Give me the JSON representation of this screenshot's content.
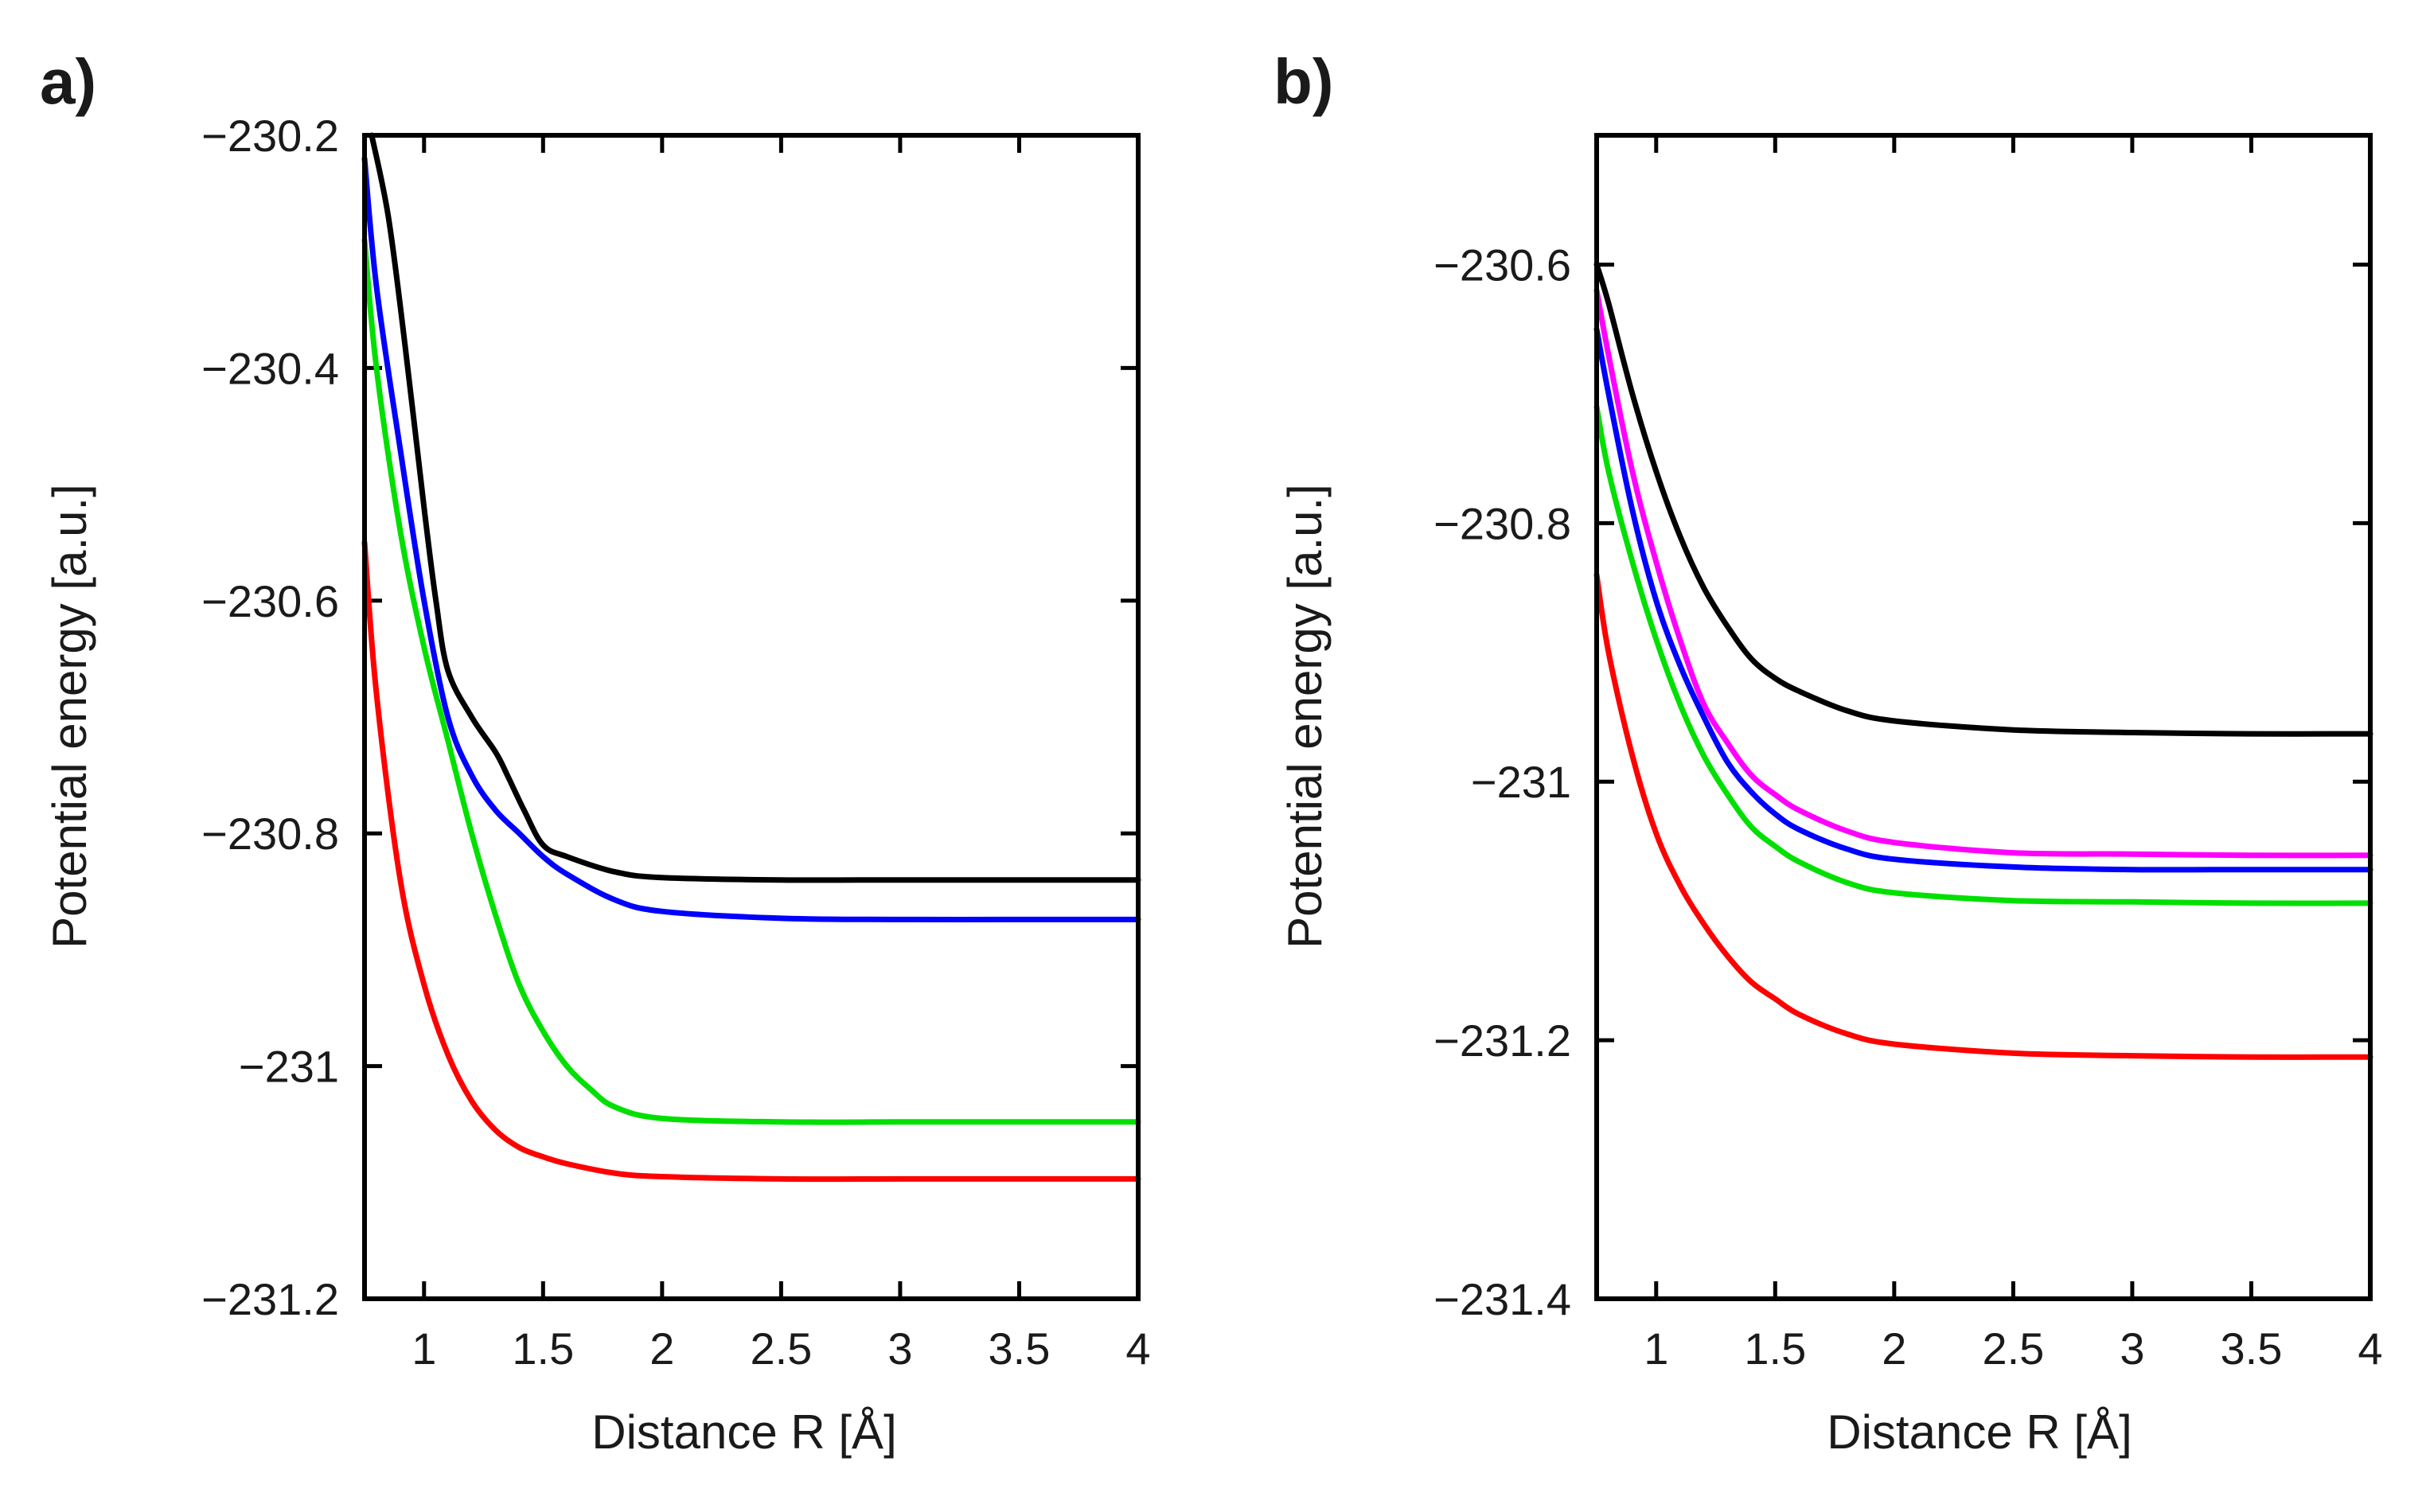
{
  "chart_data": [
    {
      "type": "line",
      "panel_label": "a)",
      "xlabel": "Distance R [Å]",
      "ylabel": "Potential energy [a.u.]",
      "xlim": [
        0.75,
        4
      ],
      "ylim": [
        -231.2,
        -230.2
      ],
      "xticks": [
        1,
        1.5,
        2,
        2.5,
        3,
        3.5,
        4
      ],
      "xtick_labels": [
        "1",
        "1.5",
        "2",
        "2.5",
        "3",
        "3.5",
        "4"
      ],
      "yticks": [
        -230.2,
        -230.4,
        -230.6,
        -230.8,
        -231,
        -231.2
      ],
      "ytick_labels": [
        "−230.2",
        "−230.4",
        "−230.6",
        "−230.8",
        "−231",
        "−231.2"
      ],
      "series": [
        {
          "name": "black",
          "color": "#000000",
          "x": [
            0.78,
            0.85,
            0.92,
            1.0,
            1.05,
            1.1,
            1.2,
            1.3,
            1.35,
            1.42,
            1.5,
            1.6,
            1.8,
            2.0,
            2.5,
            3.0,
            3.5,
            4.0
          ],
          "y": [
            -230.2,
            -230.27,
            -230.38,
            -230.52,
            -230.6,
            -230.66,
            -230.7,
            -230.73,
            -230.75,
            -230.78,
            -230.81,
            -230.82,
            -230.833,
            -230.838,
            -230.84,
            -230.84,
            -230.84,
            -230.84
          ]
        },
        {
          "name": "blue",
          "color": "#0000ff",
          "x": [
            0.75,
            0.8,
            0.9,
            1.0,
            1.1,
            1.2,
            1.3,
            1.4,
            1.5,
            1.6,
            1.8,
            2.0,
            2.5,
            3.0,
            3.5,
            4.0
          ],
          "y": [
            -230.22,
            -230.33,
            -230.47,
            -230.6,
            -230.7,
            -230.75,
            -230.78,
            -230.8,
            -230.82,
            -230.835,
            -230.857,
            -230.867,
            -230.873,
            -230.874,
            -230.874,
            -230.874
          ]
        },
        {
          "name": "green",
          "color": "#00e000",
          "x": [
            0.75,
            0.8,
            0.9,
            1.0,
            1.1,
            1.2,
            1.3,
            1.4,
            1.5,
            1.6,
            1.7,
            1.8,
            2.0,
            2.5,
            3.0,
            3.5,
            4.0
          ],
          "y": [
            -230.29,
            -230.4,
            -230.54,
            -230.64,
            -230.72,
            -230.8,
            -230.87,
            -230.93,
            -230.97,
            -231.0,
            -231.02,
            -231.035,
            -231.045,
            -231.048,
            -231.048,
            -231.048,
            -231.048
          ]
        },
        {
          "name": "red",
          "color": "#ff0000",
          "x": [
            0.75,
            0.8,
            0.9,
            1.0,
            1.1,
            1.2,
            1.3,
            1.4,
            1.5,
            1.6,
            1.8,
            2.0,
            2.5,
            3.0,
            3.5,
            4.0
          ],
          "y": [
            -230.55,
            -230.68,
            -230.84,
            -230.93,
            -230.99,
            -231.03,
            -231.055,
            -231.07,
            -231.078,
            -231.084,
            -231.092,
            -231.095,
            -231.097,
            -231.097,
            -231.097,
            -231.097
          ]
        }
      ]
    },
    {
      "type": "line",
      "panel_label": "b)",
      "xlabel": "Distance R [Å]",
      "ylabel": "Potential energy [a.u.]",
      "xlim": [
        0.75,
        4
      ],
      "ylim": [
        -231.4,
        -230.5
      ],
      "xticks": [
        1,
        1.5,
        2,
        2.5,
        3,
        3.5,
        4
      ],
      "xtick_labels": [
        "1",
        "1.5",
        "2",
        "2.5",
        "3",
        "3.5",
        "4"
      ],
      "yticks": [
        -230.6,
        -230.8,
        -231,
        -231.2,
        -231.4
      ],
      "ytick_labels": [
        "−230.6",
        "−230.8",
        "−231",
        "−231.2",
        "−231.4"
      ],
      "series": [
        {
          "name": "black",
          "color": "#000000",
          "x": [
            0.75,
            0.8,
            0.9,
            1.0,
            1.1,
            1.2,
            1.3,
            1.4,
            1.5,
            1.6,
            1.8,
            2.0,
            2.5,
            3.0,
            3.5,
            4.0
          ],
          "y": [
            -230.6,
            -230.63,
            -230.7,
            -230.76,
            -230.81,
            -230.85,
            -230.88,
            -230.905,
            -230.92,
            -230.93,
            -230.945,
            -230.953,
            -230.96,
            -230.962,
            -230.963,
            -230.963
          ]
        },
        {
          "name": "magenta",
          "color": "#ff00ff",
          "x": [
            0.75,
            0.8,
            0.9,
            1.0,
            1.1,
            1.2,
            1.3,
            1.4,
            1.5,
            1.6,
            1.8,
            2.0,
            2.5,
            3.0,
            3.5,
            4.0
          ],
          "y": [
            -230.62,
            -230.67,
            -230.76,
            -230.83,
            -230.89,
            -230.94,
            -230.97,
            -230.995,
            -231.01,
            -231.022,
            -231.038,
            -231.047,
            -231.055,
            -231.056,
            -231.057,
            -231.057
          ]
        },
        {
          "name": "blue",
          "color": "#0000ff",
          "x": [
            0.75,
            0.8,
            0.9,
            1.0,
            1.1,
            1.2,
            1.3,
            1.4,
            1.5,
            1.6,
            1.8,
            2.0,
            2.5,
            3.0,
            3.5,
            4.0
          ],
          "y": [
            -230.65,
            -230.7,
            -230.79,
            -230.86,
            -230.91,
            -230.95,
            -230.985,
            -231.008,
            -231.025,
            -231.037,
            -231.052,
            -231.06,
            -231.066,
            -231.068,
            -231.068,
            -231.068
          ]
        },
        {
          "name": "green",
          "color": "#00e000",
          "x": [
            0.75,
            0.8,
            0.9,
            1.0,
            1.1,
            1.2,
            1.3,
            1.4,
            1.5,
            1.6,
            1.8,
            2.0,
            2.5,
            3.0,
            3.5,
            4.0
          ],
          "y": [
            -230.71,
            -230.76,
            -230.83,
            -230.89,
            -230.94,
            -230.98,
            -231.01,
            -231.035,
            -231.05,
            -231.062,
            -231.078,
            -231.086,
            -231.092,
            -231.093,
            -231.094,
            -231.094
          ]
        },
        {
          "name": "red",
          "color": "#ff0000",
          "x": [
            0.75,
            0.8,
            0.9,
            1.0,
            1.1,
            1.2,
            1.3,
            1.4,
            1.5,
            1.6,
            1.8,
            2.0,
            2.5,
            3.0,
            3.5,
            4.0
          ],
          "y": [
            -230.84,
            -230.9,
            -230.98,
            -231.04,
            -231.08,
            -231.11,
            -231.135,
            -231.155,
            -231.168,
            -231.18,
            -231.195,
            -231.203,
            -231.21,
            -231.212,
            -231.213,
            -231.213
          ]
        }
      ]
    }
  ]
}
